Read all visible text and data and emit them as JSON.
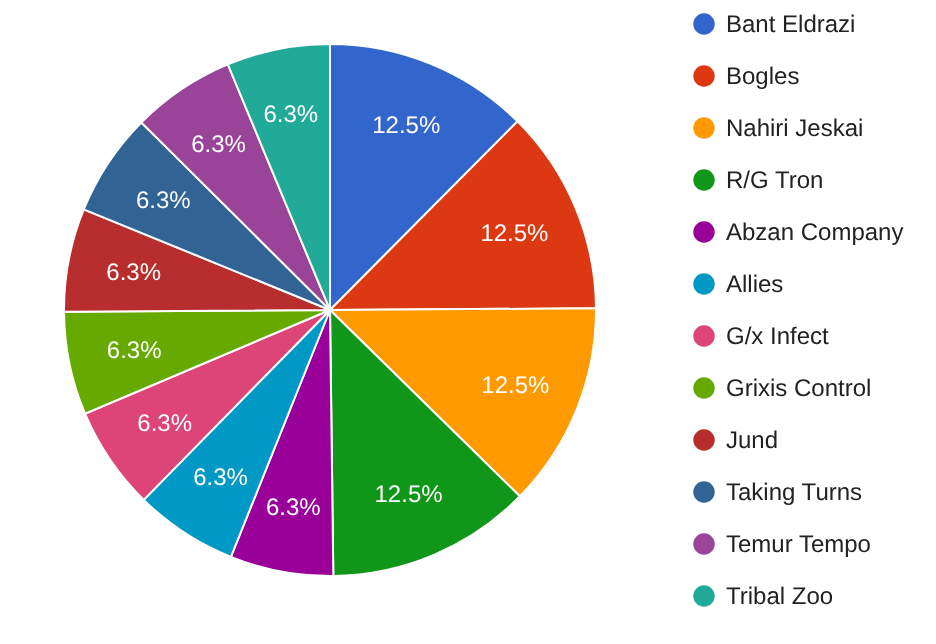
{
  "chart_data": {
    "type": "pie",
    "categories": [
      "Bant Eldrazi",
      "Bogles",
      "Nahiri Jeskai",
      "R/G Tron",
      "Abzan Company",
      "Allies",
      "G/x Infect",
      "Grixis Control",
      "Jund",
      "Taking Turns",
      "Temur Tempo",
      "Tribal Zoo"
    ],
    "values": [
      12.5,
      12.5,
      12.5,
      12.5,
      6.3,
      6.3,
      6.3,
      6.3,
      6.3,
      6.3,
      6.3,
      6.3
    ],
    "value_labels": [
      "12.5%",
      "12.5%",
      "12.5%",
      "12.5%",
      "6.3%",
      "6.3%",
      "6.3%",
      "6.3%",
      "6.3%",
      "6.3%",
      "6.3%",
      "6.3%"
    ],
    "colors": [
      "#3366cc",
      "#dc3912",
      "#ff9900",
      "#109618",
      "#990099",
      "#0099c6",
      "#dd4477",
      "#66aa00",
      "#b82e2e",
      "#316395",
      "#994499",
      "#22aa99"
    ],
    "legend": "right"
  }
}
